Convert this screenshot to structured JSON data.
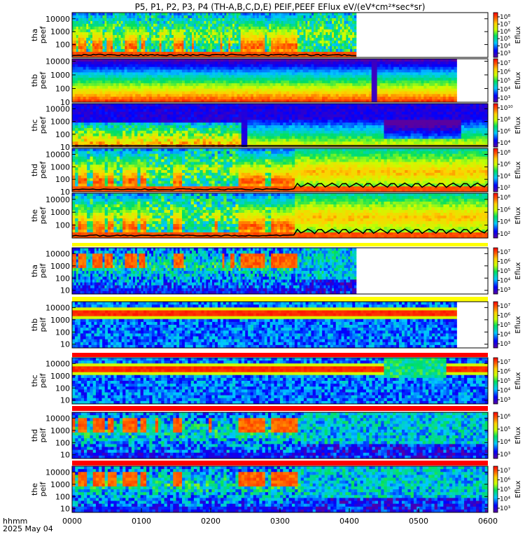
{
  "title": "P5, P1, P2, P3, P4 (TH-A,B,C,D,E) PEIF,PEEF EFlux eV/(eV*cm²*sec*sr)",
  "colors": {
    "background": "#ffffff",
    "bar_red": "#ff0000",
    "bar_yellow": "#ffff00",
    "curve": "#000000"
  },
  "chart_data": {
    "type": "heatmap",
    "title": "P5, P1, P2, P3, P4 (TH-A,B,C,D,E) PEIF,PEEF EFlux eV/(eV*cm²*sec*sr)",
    "xaxis": {
      "label": "hhmm",
      "date": "2025 May 04",
      "ticks": [
        "0000",
        "0100",
        "0200",
        "0300",
        "0400",
        "0500",
        "0600"
      ],
      "range_hours": [
        0,
        6
      ]
    },
    "yscale": "log",
    "colorscale": "rainbow (purple-blue-cyan-green-yellow-orange-red)",
    "panels": [
      {
        "name": "tha peef",
        "species": "electron",
        "ylabel": [
          "tha",
          "peef"
        ],
        "yticks": [
          "100",
          "1000",
          "10000"
        ],
        "yrange": [
          10,
          30000
        ],
        "zlabel": "Eflux",
        "zticks": [
          "10³",
          "10⁴",
          "10⁵",
          "10⁶",
          "10⁷",
          "10⁸"
        ],
        "data_end_hours": 4.1,
        "has_curve": true,
        "quality_bar": "none",
        "style": "ee_a"
      },
      {
        "name": "thb peef",
        "species": "electron",
        "ylabel": [
          "thb",
          "peef"
        ],
        "yticks": [
          "10",
          "100",
          "1000",
          "10000"
        ],
        "yrange": [
          10,
          15000
        ],
        "zlabel": "Eflux",
        "zticks": [
          "10³",
          "10⁴",
          "10⁵",
          "10⁶",
          "10⁷"
        ],
        "data_end_hours": 5.55,
        "has_curve": false,
        "quality_bar": "none",
        "style": "ee_b"
      },
      {
        "name": "thc peef",
        "species": "electron",
        "ylabel": [
          "thc",
          "peef"
        ],
        "yticks": [
          "10",
          "100",
          "1000",
          "10000"
        ],
        "yrange": [
          10,
          25000
        ],
        "zlabel": "Eflux",
        "zticks": [
          "10⁴",
          "10⁶",
          "10⁸",
          "10¹⁰"
        ],
        "data_end_hours": 6.0,
        "has_curve": true,
        "quality_bar": "none",
        "style": "ee_c"
      },
      {
        "name": "thd peef",
        "species": "electron",
        "ylabel": [
          "thd",
          "peef"
        ],
        "yticks": [
          "10",
          "100",
          "1000",
          "10000"
        ],
        "yrange": [
          10,
          30000
        ],
        "zlabel": "Eflux",
        "zticks": [
          "10²",
          "10⁴",
          "10⁶",
          "10⁸"
        ],
        "data_end_hours": 6.0,
        "has_curve": true,
        "quality_bar": "none",
        "style": "ee_d"
      },
      {
        "name": "the peef",
        "species": "electron",
        "ylabel": [
          "the",
          "peef"
        ],
        "yticks": [
          "100",
          "1000",
          "10000"
        ],
        "yrange": [
          10,
          30000
        ],
        "zlabel": "Eflux",
        "zticks": [
          "10²",
          "10⁴",
          "10⁶",
          "10⁸"
        ],
        "data_end_hours": 6.0,
        "has_curve": true,
        "quality_bar": "red",
        "style": "ee_e"
      },
      {
        "name": "tha peif",
        "species": "ion",
        "ylabel": [
          "tha",
          "peif"
        ],
        "yticks": [
          "10",
          "100",
          "1000",
          "10000"
        ],
        "yrange": [
          5,
          30000
        ],
        "zlabel": "Eflux",
        "zticks": [
          "10³",
          "10⁴",
          "10⁵",
          "10⁶",
          "10⁷"
        ],
        "data_end_hours": 4.1,
        "has_curve": false,
        "quality_bar": "yellow",
        "style": "ii_a"
      },
      {
        "name": "thb peif",
        "species": "ion",
        "ylabel": [
          "thb",
          "peif"
        ],
        "yticks": [
          "10",
          "100",
          "1000",
          "10000"
        ],
        "yrange": [
          5,
          30000
        ],
        "zlabel": "Eflux",
        "zticks": [
          "10³",
          "10⁴",
          "10⁵",
          "10⁶",
          "10⁷"
        ],
        "data_end_hours": 5.55,
        "has_curve": false,
        "quality_bar": "yellow",
        "style": "ii_b"
      },
      {
        "name": "thc peif",
        "species": "ion",
        "ylabel": [
          "thc",
          "peif"
        ],
        "yticks": [
          "10",
          "100",
          "1000",
          "10000"
        ],
        "yrange": [
          5,
          30000
        ],
        "zlabel": "Eflux",
        "zticks": [
          "10³",
          "10⁴",
          "10⁵",
          "10⁶",
          "10⁷"
        ],
        "data_end_hours": 6.0,
        "has_curve": false,
        "quality_bar": "red",
        "style": "ii_c"
      },
      {
        "name": "thd peif",
        "species": "ion",
        "ylabel": [
          "thd",
          "peif"
        ],
        "yticks": [
          "10",
          "100",
          "1000",
          "10000"
        ],
        "yrange": [
          5,
          30000
        ],
        "zlabel": "Eflux",
        "zticks": [
          "10³",
          "10⁴",
          "10⁵",
          "10⁶"
        ],
        "data_end_hours": 6.0,
        "has_curve": false,
        "quality_bar": "red",
        "style": "ii_d"
      },
      {
        "name": "the peif",
        "species": "ion",
        "ylabel": [
          "the",
          "peif"
        ],
        "yticks": [
          "10",
          "100",
          "1000",
          "10000"
        ],
        "yrange": [
          5,
          30000
        ],
        "zlabel": "Eflux",
        "zticks": [
          "10³",
          "10⁴",
          "10⁵",
          "10⁶",
          "10⁷"
        ],
        "data_end_hours": 6.0,
        "has_curve": false,
        "quality_bar": "red",
        "style": "ii_e"
      }
    ]
  }
}
